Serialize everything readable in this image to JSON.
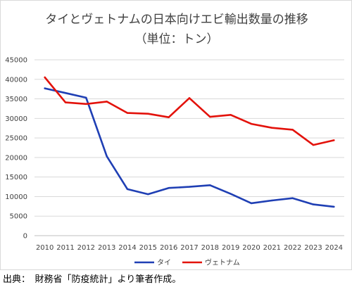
{
  "chart_data": {
    "type": "line",
    "title": "タイとヴェトナムの日本向けエビ輸出数量の推移",
    "subtitle": "（単位：トン）",
    "categories": [
      "2010",
      "2011",
      "2012",
      "2013",
      "2014",
      "2015",
      "2016",
      "2017",
      "2018",
      "2019",
      "2020",
      "2021",
      "2022",
      "2023",
      "2024"
    ],
    "series": [
      {
        "name": "タイ",
        "color": "#1f3fb4",
        "values": [
          37700,
          36500,
          35300,
          20300,
          11900,
          10600,
          12200,
          12500,
          12900,
          10700,
          8300,
          9000,
          9600,
          8000,
          7400
        ]
      },
      {
        "name": "ヴェトナム",
        "color": "#e3120b",
        "values": [
          40500,
          34100,
          33700,
          34300,
          31400,
          31200,
          30300,
          35200,
          30400,
          30900,
          28600,
          27600,
          27100,
          23200,
          24400
        ]
      }
    ],
    "ylim": [
      0,
      45000
    ],
    "yticks": [
      "45000",
      "40000",
      "35000",
      "30000",
      "25000",
      "20000",
      "15000",
      "10000",
      "5000",
      "0"
    ],
    "grid": true,
    "legend_position": "bottom"
  },
  "source_note": "出典：　財務省「防疫統計」より筆者作成。"
}
